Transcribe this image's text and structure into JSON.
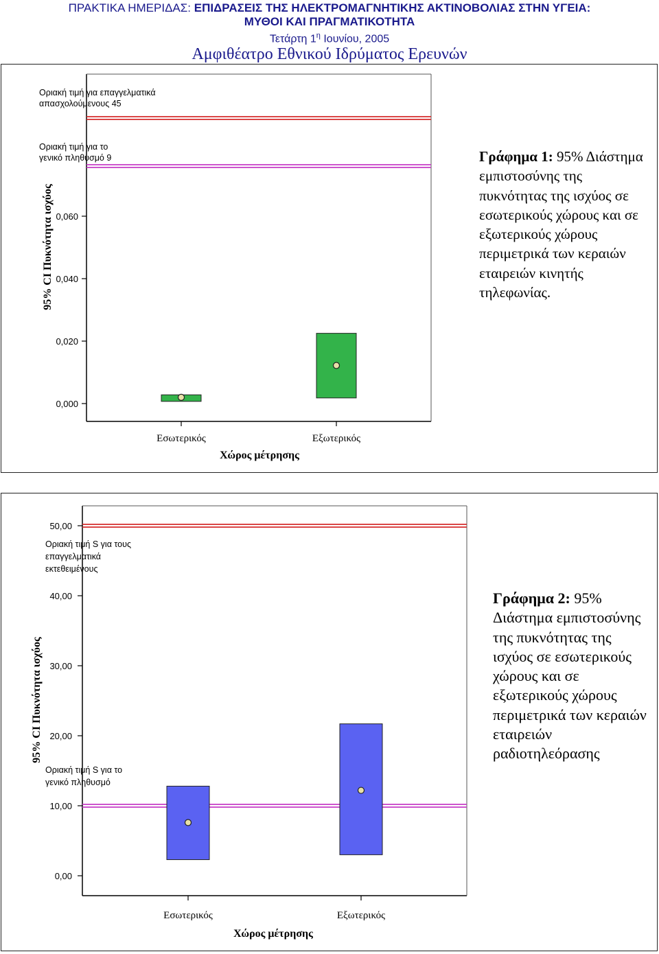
{
  "header": {
    "line1_prefix": "ΠΡΑΚΤΙΚΑ ΗΜΕΡΙΔΑΣ: ",
    "line1_bold": "ΕΠΙΔΡΑΣΕΙΣ ΤΗΣ ΗΛΕΚΤΡΟΜΑΓΝΗΤΙΚΗΣ ΑΚΤΙΝΟΒΟΛΙΑΣ ΣΤΗΝ ΥΓΕΙΑ:",
    "line2": "ΜΥΘΟΙ ΚΑΙ ΠΡΑΓΜΑΤΙΚΟΤΗΤΑ",
    "date_prefix": "Τετάρτη 1",
    "date_sup": "η",
    "date_suffix": " Ιουνίου, 2005",
    "venue": "Αμφιθέατρο Εθνικού Ιδρύματος Ερευνών"
  },
  "captions": {
    "chart1_label": "Γράφημα 1:",
    "chart1_text": " 95% Διάστημα εμπιστοσύνης της πυκνότητας της ισχύος σε εσωτερικούς χώρους και σε εξωτερικούς χώρους περιμετρικά των κεραιών εταιρειών κινητής τηλεφωνίας.",
    "chart2_label": "Γράφημα 2:",
    "chart2_text": " 95% Διάστημα εμπιστοσύνης της πυκνότητας της ισχύος σε εσωτερικούς χώρους και σε εξωτερικούς χώρους περιμετρικά των κεραιών εταιρειών ραδιοτηλεόρασης"
  },
  "chart_data": [
    {
      "type": "errorbar",
      "title": "",
      "xlabel": "Χώρος μέτρησης",
      "ylabel": "95% CI Πυκνότητα ισχύος",
      "categories": [
        "Εσωτερικός",
        "Εξωτερικός"
      ],
      "means": [
        0.002,
        0.0122
      ],
      "ci_low": [
        0.0007,
        0.0018
      ],
      "ci_high": [
        0.0028,
        0.0225
      ],
      "y_ticks": [
        "0,000",
        "0,020",
        "0,040",
        "0,060"
      ],
      "y_tick_values": [
        0,
        0.02,
        0.04,
        0.06
      ],
      "ylim": [
        0,
        0.105
      ],
      "box_color": "#33b34a",
      "reference_lines": [
        {
          "label_lines": [
            "Οριακή τιμή για επαγγελματικά",
            "απασχολούμενους 45"
          ],
          "position": 0.091,
          "color": "#d42b2b"
        },
        {
          "label_lines": [
            "Οριακή τιμή για το",
            "γενικό πληθυσμό 9"
          ],
          "position": 0.0755,
          "color": "#c63cc6"
        }
      ]
    },
    {
      "type": "errorbar",
      "title": "",
      "xlabel": "Χώρος μέτρησης",
      "ylabel": "95% CI Πυκνότητα ισχύος",
      "categories": [
        "Εσωτερικός",
        "Εξωτερικός"
      ],
      "means": [
        7.6,
        12.2
      ],
      "ci_low": [
        2.3,
        3.0
      ],
      "ci_high": [
        12.8,
        21.7
      ],
      "y_ticks": [
        "0,00",
        "10,00",
        "20,00",
        "30,00",
        "40,00",
        "50,00"
      ],
      "y_tick_values": [
        0,
        10,
        20,
        30,
        40,
        50
      ],
      "ylim": [
        -2.8,
        52.5
      ],
      "box_color": "#5a62f2",
      "reference_lines": [
        {
          "label_lines": [
            "Οριακή τιμή S για τους",
            "επαγγελματικά",
            "εκτεθειμένους"
          ],
          "value": 50,
          "color": "#d42b2b"
        },
        {
          "label_lines": [
            "Οριακή τιμή S για το",
            "γενικό πληθυσμό"
          ],
          "value": 10,
          "color": "#c63cc6"
        }
      ]
    }
  ]
}
